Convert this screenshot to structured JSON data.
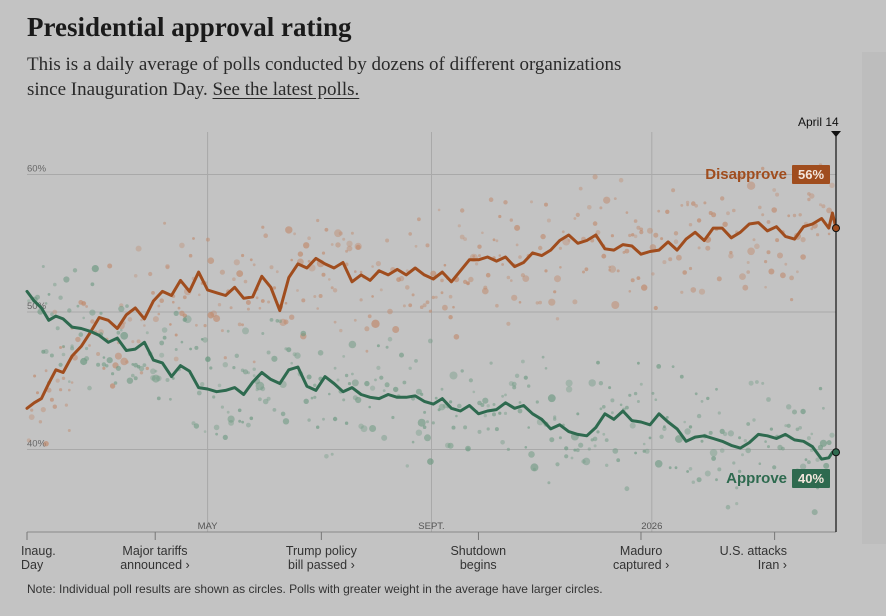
{
  "header": {
    "title": "Presidential approval rating",
    "subtitle_line1": "This is a daily average of polls conducted by dozens of different organizations",
    "subtitle_line2_prefix": "since Inauguration Day. ",
    "subtitle_link": "See the latest polls."
  },
  "note": "Note: Individual poll results are shown as circles. Polls with greater weight in the average have larger circles.",
  "chart_data": {
    "type": "line",
    "title": "Presidential approval rating",
    "y_unit": "percent",
    "ylim": [
      34,
      62
    ],
    "y_ticks": [
      {
        "value": 60,
        "label": "60%"
      },
      {
        "value": 50,
        "label": "50%"
      },
      {
        "value": 40,
        "label": "40%"
      }
    ],
    "x_unit": "days since Inauguration Day",
    "xlim": [
      0,
      448
    ],
    "x_ticks": [
      {
        "day": 100,
        "label": "MAY"
      },
      {
        "day": 224,
        "label": "SEPT."
      },
      {
        "day": 346,
        "label": "2026"
      }
    ],
    "end_label": "April 14",
    "events": [
      {
        "day": 0,
        "line1": "Inaug.",
        "line2": "Day",
        "align": "left"
      },
      {
        "day": 71,
        "line1": "Major tariffs",
        "line2": "announced ›",
        "align": "center"
      },
      {
        "day": 163,
        "line1": "Trump policy",
        "line2": "bill passed ›",
        "align": "center"
      },
      {
        "day": 250,
        "line1": "Shutdown",
        "line2": "begins",
        "align": "center"
      },
      {
        "day": 340,
        "line1": "Maduro",
        "line2": "captured ›",
        "align": "center"
      },
      {
        "day": 414,
        "line1": "U.S. attacks",
        "line2": "Iran ›",
        "align": "right"
      }
    ],
    "series": [
      {
        "name": "Disapprove",
        "label": "Disapprove",
        "value_label": "56%",
        "color": "#a04d1e",
        "dot_color": "#c08a6d",
        "x": [
          0,
          4,
          8,
          12,
          16,
          20,
          25,
          30,
          35,
          40,
          45,
          50,
          55,
          60,
          65,
          70,
          75,
          80,
          85,
          90,
          95,
          100,
          105,
          110,
          115,
          120,
          125,
          130,
          135,
          140,
          145,
          150,
          155,
          160,
          165,
          170,
          175,
          180,
          185,
          190,
          195,
          200,
          205,
          210,
          215,
          220,
          225,
          230,
          235,
          240,
          245,
          250,
          255,
          260,
          265,
          270,
          275,
          280,
          285,
          290,
          295,
          300,
          305,
          310,
          315,
          320,
          325,
          330,
          335,
          340,
          345,
          350,
          355,
          360,
          365,
          370,
          375,
          380,
          385,
          390,
          395,
          400,
          405,
          410,
          415,
          420,
          425,
          430,
          435,
          440,
          444,
          446,
          448
        ],
        "values": [
          43.0,
          43.4,
          43.7,
          44.8,
          45.8,
          45.6,
          46.8,
          47.5,
          48.5,
          49.6,
          49.4,
          48.8,
          49.8,
          50.3,
          49.5,
          50.8,
          51.5,
          51.2,
          52.3,
          51.5,
          52.9,
          51.6,
          51.4,
          51.2,
          51.8,
          51.0,
          51.1,
          52.6,
          51.8,
          50.1,
          52.5,
          53.5,
          53.2,
          53.9,
          53.5,
          53.2,
          53.6,
          52.2,
          52.7,
          52.3,
          53.0,
          52.7,
          53.1,
          52.7,
          53.2,
          52.7,
          52.4,
          52.9,
          52.2,
          53.0,
          53.8,
          53.8,
          54.0,
          53.7,
          54.0,
          53.3,
          53.6,
          54.3,
          54.1,
          54.5,
          55.2,
          55.6,
          55.0,
          55.2,
          55.6,
          54.6,
          54.5,
          54.9,
          54.8,
          54.2,
          54.4,
          54.5,
          55.1,
          54.5,
          55.3,
          55.8,
          55.2,
          56.1,
          56.1,
          55.4,
          55.8,
          56.4,
          56.5,
          55.9,
          56.2,
          55.5,
          55.3,
          56.2,
          56.4,
          56.8,
          56.1,
          57.2,
          56.1
        ]
      },
      {
        "name": "Approve",
        "label": "Approve",
        "value_label": "40%",
        "color": "#2e6a4f",
        "dot_color": "#6f9a83",
        "x": [
          0,
          4,
          8,
          12,
          16,
          20,
          25,
          30,
          35,
          40,
          45,
          50,
          55,
          60,
          65,
          70,
          75,
          80,
          85,
          90,
          95,
          100,
          105,
          110,
          115,
          120,
          125,
          130,
          135,
          140,
          145,
          150,
          155,
          160,
          165,
          170,
          175,
          180,
          185,
          190,
          195,
          200,
          205,
          210,
          215,
          220,
          225,
          230,
          235,
          240,
          245,
          250,
          255,
          260,
          265,
          270,
          275,
          280,
          285,
          290,
          295,
          300,
          305,
          310,
          315,
          320,
          325,
          330,
          335,
          340,
          345,
          350,
          355,
          360,
          365,
          370,
          375,
          380,
          385,
          390,
          395,
          400,
          405,
          410,
          415,
          420,
          425,
          430,
          435,
          440,
          444,
          446,
          448
        ],
        "values": [
          51.5,
          50.8,
          50.3,
          49.4,
          49.7,
          49.5,
          48.9,
          48.8,
          48.6,
          48.3,
          47.8,
          48.1,
          47.2,
          47.3,
          47.8,
          46.5,
          46.3,
          45.3,
          46.1,
          45.7,
          44.5,
          44.4,
          44.2,
          44.3,
          44.5,
          44.0,
          44.9,
          45.6,
          45.1,
          44.8,
          45.8,
          46.0,
          44.6,
          44.3,
          45.3,
          44.8,
          44.2,
          44.5,
          44.0,
          43.8,
          43.7,
          44.0,
          43.8,
          43.8,
          43.9,
          43.5,
          43.3,
          43.7,
          43.0,
          42.8,
          43.2,
          42.6,
          42.8,
          42.9,
          43.4,
          43.0,
          43.2,
          42.6,
          42.2,
          41.5,
          41.8,
          41.3,
          41.1,
          41.0,
          41.6,
          42.6,
          42.2,
          42.8,
          42.1,
          42.0,
          41.8,
          42.6,
          42.0,
          41.5,
          40.6,
          40.9,
          41.0,
          40.8,
          40.6,
          40.3,
          40.1,
          40.5,
          41.1,
          41.0,
          40.8,
          41.1,
          40.7,
          40.6,
          40.2,
          39.3,
          39.4,
          39.8,
          39.8
        ]
      }
    ]
  }
}
